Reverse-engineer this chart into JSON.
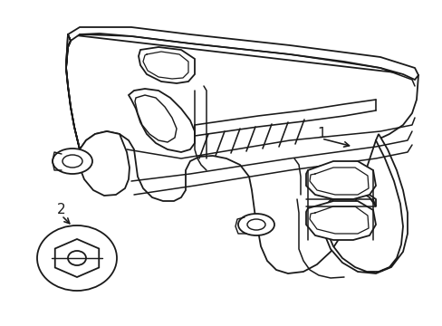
{
  "background_color": "#ffffff",
  "line_color": "#1a1a1a",
  "line_width": 1.3,
  "label1": "1",
  "label2": "2",
  "figsize": [
    4.89,
    3.6
  ],
  "dpi": 100
}
